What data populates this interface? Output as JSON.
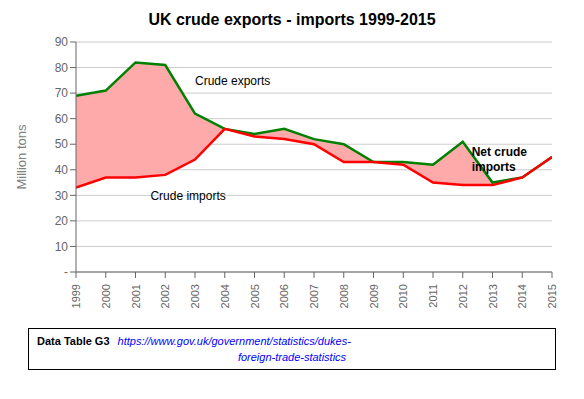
{
  "chart_data": {
    "type": "line",
    "title": "UK crude exports - imports 1999-2015",
    "y_label": "Million tons",
    "x": [
      1999,
      2000,
      2001,
      2002,
      2003,
      2004,
      2005,
      2006,
      2007,
      2008,
      2009,
      2010,
      2011,
      2012,
      2013,
      2014,
      2015
    ],
    "series": [
      {
        "name": "Crude exports",
        "color": "#008000",
        "values": [
          69,
          71,
          82,
          81,
          62,
          56,
          54,
          56,
          52,
          50,
          43,
          43,
          42,
          51,
          35,
          37,
          45
        ]
      },
      {
        "name": "Crude imports",
        "color": "#ff0000",
        "values": [
          33,
          37,
          37,
          38,
          44,
          56,
          53,
          52,
          50,
          43,
          43,
          42,
          35,
          34,
          34,
          37,
          45
        ]
      }
    ],
    "fill_between": {
      "series": [
        "Crude exports",
        "Crude imports"
      ],
      "color": "#ffaaaa"
    },
    "xlim": [
      1999,
      2015
    ],
    "xticks": [
      1999,
      2000,
      2001,
      2002,
      2003,
      2004,
      2005,
      2006,
      2007,
      2008,
      2009,
      2010,
      2011,
      2012,
      2013,
      2014,
      2015
    ],
    "ylim": [
      0,
      90
    ],
    "yticks": [
      {
        "value": 0,
        "label": "-"
      },
      10,
      20,
      30,
      40,
      50,
      60,
      70,
      80,
      90
    ],
    "grid": true,
    "annotations": [
      {
        "text": "Crude exports",
        "x": 2003,
        "y": 73
      },
      {
        "text": "Crude imports",
        "x": 2001.5,
        "y": 28
      },
      {
        "text": "Net crude\nimports",
        "x": 2012.3,
        "y": 44
      }
    ],
    "source": {
      "text": "Data Table G3",
      "url": [
        "https://www.gov.uk/government/statistics/dukes-",
        "foreign-trade-statistics"
      ]
    }
  }
}
